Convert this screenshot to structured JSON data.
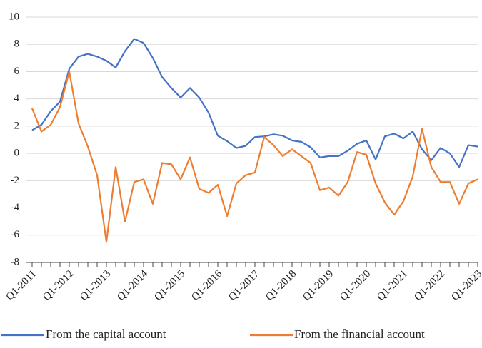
{
  "chart_data": {
    "type": "line",
    "categories": [
      "Q1-2011",
      null,
      null,
      null,
      "Q1-2012",
      null,
      null,
      null,
      "Q1-2013",
      null,
      null,
      null,
      "Q1-2014",
      null,
      null,
      null,
      "Q1-2015",
      null,
      null,
      null,
      "Q1-2016",
      null,
      null,
      null,
      "Q1-2017",
      null,
      null,
      null,
      "Q1-2018",
      null,
      null,
      null,
      "Q1-2019",
      null,
      null,
      null,
      "Q1-2020",
      null,
      null,
      null,
      "Q1-2021",
      null,
      null,
      null,
      "Q1-2022",
      null,
      null,
      null,
      "Q1-2023"
    ],
    "series": [
      {
        "name": "From the capital account",
        "color": "#4472c4",
        "values": [
          1.7,
          2.1,
          3.1,
          3.8,
          6.2,
          7.1,
          7.3,
          7.1,
          6.8,
          6.3,
          7.5,
          8.4,
          8.1,
          7.0,
          5.6,
          4.8,
          4.1,
          4.8,
          4.1,
          3.0,
          1.3,
          0.9,
          0.4,
          0.55,
          1.2,
          1.25,
          1.4,
          1.3,
          0.95,
          0.85,
          0.45,
          -0.3,
          -0.2,
          -0.2,
          0.2,
          0.7,
          0.95,
          -0.45,
          1.25,
          1.45,
          1.1,
          1.6,
          0.3,
          -0.5,
          0.4,
          0.0,
          -1.0,
          0.6,
          0.5
        ]
      },
      {
        "name": "From the financial account",
        "color": "#ed7d31",
        "values": [
          3.3,
          1.6,
          2.1,
          3.4,
          6.0,
          2.2,
          0.5,
          -1.6,
          -6.5,
          -1.0,
          -5.0,
          -2.1,
          -1.9,
          -3.7,
          -0.7,
          -0.8,
          -1.9,
          -0.3,
          -2.6,
          -2.9,
          -2.3,
          -4.6,
          -2.2,
          -1.6,
          -1.4,
          1.2,
          0.6,
          -0.2,
          0.3,
          -0.2,
          -0.7,
          -2.7,
          -2.5,
          -3.1,
          -2.1,
          0.1,
          -0.1,
          -2.2,
          -3.6,
          -4.5,
          -3.5,
          -1.7,
          1.8,
          -1.0,
          -2.1,
          -2.1,
          -3.7,
          -2.2,
          -1.9
        ]
      }
    ],
    "ylim": [
      -8,
      10
    ],
    "yticks": [
      -8,
      -6,
      -4,
      -2,
      0,
      2,
      4,
      6,
      8,
      10
    ],
    "grid": true,
    "legend": "bottom"
  }
}
